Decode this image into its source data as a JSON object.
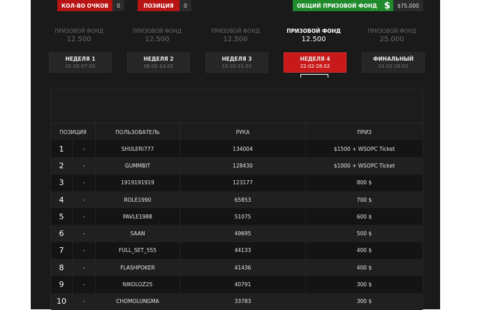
{
  "stats": {
    "points_label": "КОЛ-ВО ОЧКОВ",
    "points_value": "0",
    "position_label": "ПОЗИЦИЯ",
    "position_value": "0",
    "total_fund_label": "ОБЩИЙ ПРИЗОВОЙ ФОНД",
    "dollar_symbol": "$",
    "total_fund_value": "$75,000"
  },
  "weeks": [
    {
      "fund_label": "ПРИЗОВОЙ ФОНД",
      "fund_value": "12.500",
      "name": "НЕДЕЛЯ 1",
      "dates": "01.02-07.02"
    },
    {
      "fund_label": "ПРИЗОВОЙ ФОНД",
      "fund_value": "12.500",
      "name": "НЕДЕЛЯ 2",
      "dates": "08.02-14.02"
    },
    {
      "fund_label": "ПРИЗОВОЙ ФОНД",
      "fund_value": "12.500",
      "name": "НЕДЕЛЯ 3",
      "dates": "15.02-21.02"
    },
    {
      "fund_label": "ПРИЗОВОЙ ФОНД",
      "fund_value": "12.500",
      "name": "НЕДЕЛЯ 4",
      "dates": "22.02-28.02"
    },
    {
      "fund_label": "ПРИЗОВОЙ ФОНД",
      "fund_value": "25.000",
      "name": "ФИНАЛЬНЫЙ",
      "dates": "01.02-28.02"
    }
  ],
  "active_week": 3,
  "table": {
    "headers": {
      "position": "ПОЗИЦИЯ",
      "user": "ПОЛЬЗОВАТЕЛЬ",
      "hand": "РУКА",
      "prize": "ПРИЗ"
    },
    "rows": [
      {
        "rank": "1",
        "change": "-",
        "user": "SHULERI777",
        "hand": "134004",
        "prize": "$1500 + WSOPC Ticket"
      },
      {
        "rank": "2",
        "change": "-",
        "user": "GUMMBIT",
        "hand": "128430",
        "prize": "$1000 + WSOPC Ticket"
      },
      {
        "rank": "3",
        "change": "-",
        "user": "1919191919",
        "hand": "123177",
        "prize": "800 $"
      },
      {
        "rank": "4",
        "change": "-",
        "user": "ROLE1990",
        "hand": "65853",
        "prize": "700 $"
      },
      {
        "rank": "5",
        "change": "-",
        "user": "PAVLE1988",
        "hand": "51075",
        "prize": "600 $"
      },
      {
        "rank": "6",
        "change": "-",
        "user": "SAAN",
        "hand": "49695",
        "prize": "500 $"
      },
      {
        "rank": "7",
        "change": "-",
        "user": "FULL_SET_555",
        "hand": "44133",
        "prize": "400 $"
      },
      {
        "rank": "8",
        "change": "-",
        "user": "FLASHPOKER",
        "hand": "41436",
        "prize": "400 $"
      },
      {
        "rank": "9",
        "change": "-",
        "user": "NIKOLOZ25",
        "hand": "40791",
        "prize": "300 $"
      },
      {
        "rank": "10",
        "change": "-",
        "user": "CHOMOLUNGMA",
        "hand": "33783",
        "prize": "300 $"
      }
    ]
  }
}
